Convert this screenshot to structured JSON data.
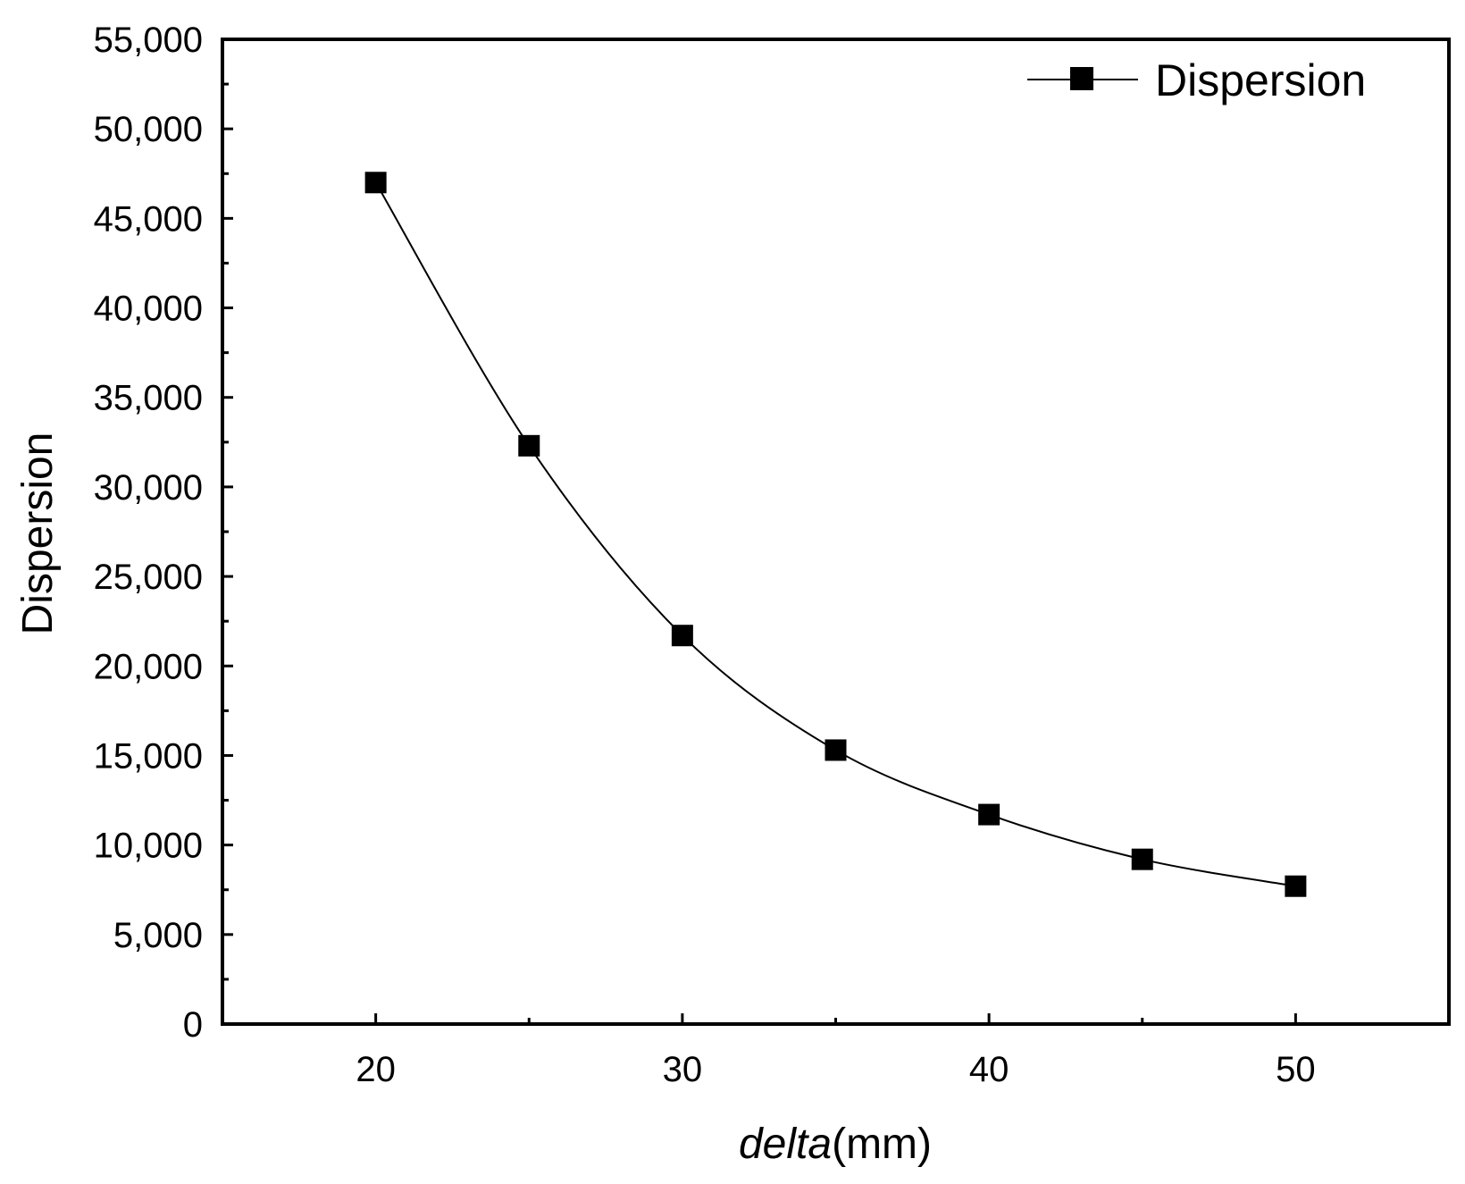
{
  "chart_data": {
    "type": "line",
    "title": "",
    "xlabel_italic": "delta",
    "xlabel_unit": "(mm)",
    "ylabel": "Dispersion",
    "x": [
      20,
      25,
      30,
      35,
      40,
      45,
      50
    ],
    "series": [
      {
        "name": "Dispersion",
        "values": [
          47000,
          32300,
          21700,
          15300,
          11700,
          9200,
          7700
        ]
      }
    ],
    "xlim": [
      15,
      55
    ],
    "ylim": [
      0,
      55000
    ],
    "x_ticks": [
      20,
      30,
      40,
      50
    ],
    "x_tick_labels": [
      "20",
      "30",
      "40",
      "50"
    ],
    "x_minor_ticks": [
      25,
      35,
      45
    ],
    "y_ticks": [
      0,
      5000,
      10000,
      15000,
      20000,
      25000,
      30000,
      35000,
      40000,
      45000,
      50000,
      55000
    ],
    "y_tick_labels": [
      "0",
      "5,000",
      "10,000",
      "15,000",
      "20,000",
      "25,000",
      "30,000",
      "35,000",
      "40,000",
      "45,000",
      "50,000",
      "55,000"
    ],
    "y_minor_ticks": [
      2500,
      7500,
      12500,
      17500,
      22500,
      27500,
      32500,
      37500,
      42500,
      47500,
      52500
    ],
    "marker": "square",
    "line_style": "smooth",
    "grid": false,
    "legend_position": "top-right",
    "colors": {
      "line": "#000000",
      "marker": "#000000",
      "axis": "#000000"
    }
  }
}
